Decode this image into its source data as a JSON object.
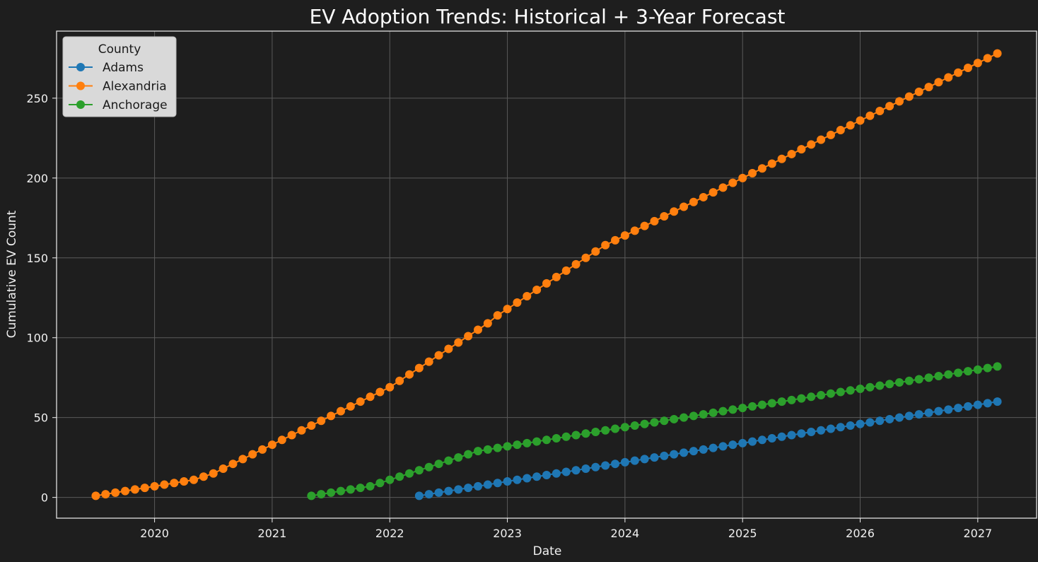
{
  "chart_data": {
    "type": "line",
    "title": "EV Adoption Trends: Historical + 3-Year Forecast",
    "xlabel": "Date",
    "ylabel": "Cumulative EV Count",
    "x_axis_type": "date",
    "xlim": [
      "2019-03",
      "2027-07"
    ],
    "ylim": [
      -13,
      292
    ],
    "x_ticks": [
      "2020",
      "2021",
      "2022",
      "2023",
      "2024",
      "2025",
      "2026",
      "2027"
    ],
    "y_ticks": [
      0,
      50,
      100,
      150,
      200,
      250
    ],
    "grid": true,
    "legend": {
      "title": "County",
      "placement": "top-left"
    },
    "colors": {
      "background": "#1e1e1e",
      "grid": "#5a5a5a",
      "legend_bg": "#d9d9d9"
    },
    "marker": "circle",
    "series": [
      {
        "name": "Adams",
        "color": "#1f77b4",
        "points": [
          [
            "2022-04",
            1
          ],
          [
            "2022-05",
            2
          ],
          [
            "2022-06",
            3
          ],
          [
            "2022-07",
            4
          ],
          [
            "2022-08",
            5
          ],
          [
            "2022-09",
            6
          ],
          [
            "2022-10",
            7
          ],
          [
            "2022-11",
            8
          ],
          [
            "2022-12",
            9
          ],
          [
            "2023-01",
            10
          ],
          [
            "2023-02",
            11
          ],
          [
            "2023-03",
            12
          ],
          [
            "2023-04",
            13
          ],
          [
            "2023-05",
            14
          ],
          [
            "2023-06",
            15
          ],
          [
            "2023-07",
            16
          ],
          [
            "2023-08",
            17
          ],
          [
            "2023-09",
            18
          ],
          [
            "2023-10",
            19
          ],
          [
            "2023-11",
            20
          ],
          [
            "2023-12",
            21
          ],
          [
            "2024-01",
            22
          ],
          [
            "2024-02",
            23
          ],
          [
            "2024-03",
            24
          ],
          [
            "2024-04",
            25
          ],
          [
            "2024-05",
            26
          ],
          [
            "2024-06",
            27
          ],
          [
            "2024-07",
            28
          ],
          [
            "2024-08",
            29
          ],
          [
            "2024-09",
            30
          ],
          [
            "2024-10",
            31
          ],
          [
            "2024-11",
            32
          ],
          [
            "2024-12",
            33
          ],
          [
            "2025-01",
            34
          ],
          [
            "2025-02",
            35
          ],
          [
            "2025-03",
            36
          ],
          [
            "2025-04",
            37
          ],
          [
            "2025-05",
            38
          ],
          [
            "2025-06",
            39
          ],
          [
            "2025-07",
            40
          ],
          [
            "2025-08",
            41
          ],
          [
            "2025-09",
            42
          ],
          [
            "2025-10",
            43
          ],
          [
            "2025-11",
            44
          ],
          [
            "2025-12",
            45
          ],
          [
            "2026-01",
            46
          ],
          [
            "2026-02",
            47
          ],
          [
            "2026-03",
            48
          ],
          [
            "2026-04",
            49
          ],
          [
            "2026-05",
            50
          ],
          [
            "2026-06",
            51
          ],
          [
            "2026-07",
            52
          ],
          [
            "2026-08",
            53
          ],
          [
            "2026-09",
            54
          ],
          [
            "2026-10",
            55
          ],
          [
            "2026-11",
            56
          ],
          [
            "2026-12",
            57
          ],
          [
            "2027-01",
            58
          ],
          [
            "2027-02",
            59
          ],
          [
            "2027-03",
            60
          ]
        ]
      },
      {
        "name": "Alexandria",
        "color": "#ff7f0e",
        "points": [
          [
            "2019-07",
            1
          ],
          [
            "2019-08",
            2
          ],
          [
            "2019-09",
            3
          ],
          [
            "2019-10",
            4
          ],
          [
            "2019-11",
            5
          ],
          [
            "2019-12",
            6
          ],
          [
            "2020-01",
            7
          ],
          [
            "2020-02",
            8
          ],
          [
            "2020-03",
            9
          ],
          [
            "2020-04",
            10
          ],
          [
            "2020-05",
            11
          ],
          [
            "2020-06",
            13
          ],
          [
            "2020-07",
            15
          ],
          [
            "2020-08",
            18
          ],
          [
            "2020-09",
            21
          ],
          [
            "2020-10",
            24
          ],
          [
            "2020-11",
            27
          ],
          [
            "2020-12",
            30
          ],
          [
            "2021-01",
            33
          ],
          [
            "2021-02",
            36
          ],
          [
            "2021-03",
            39
          ],
          [
            "2021-04",
            42
          ],
          [
            "2021-05",
            45
          ],
          [
            "2021-06",
            48
          ],
          [
            "2021-07",
            51
          ],
          [
            "2021-08",
            54
          ],
          [
            "2021-09",
            57
          ],
          [
            "2021-10",
            60
          ],
          [
            "2021-11",
            63
          ],
          [
            "2021-12",
            66
          ],
          [
            "2022-01",
            69
          ],
          [
            "2022-02",
            73
          ],
          [
            "2022-03",
            77
          ],
          [
            "2022-04",
            81
          ],
          [
            "2022-05",
            85
          ],
          [
            "2022-06",
            89
          ],
          [
            "2022-07",
            93
          ],
          [
            "2022-08",
            97
          ],
          [
            "2022-09",
            101
          ],
          [
            "2022-10",
            105
          ],
          [
            "2022-11",
            109
          ],
          [
            "2022-12",
            114
          ],
          [
            "2023-01",
            118
          ],
          [
            "2023-02",
            122
          ],
          [
            "2023-03",
            126
          ],
          [
            "2023-04",
            130
          ],
          [
            "2023-05",
            134
          ],
          [
            "2023-06",
            138
          ],
          [
            "2023-07",
            142
          ],
          [
            "2023-08",
            146
          ],
          [
            "2023-09",
            150
          ],
          [
            "2023-10",
            154
          ],
          [
            "2023-11",
            158
          ],
          [
            "2023-12",
            161
          ],
          [
            "2024-01",
            164
          ],
          [
            "2024-02",
            167
          ],
          [
            "2024-03",
            170
          ],
          [
            "2024-04",
            173
          ],
          [
            "2024-05",
            176
          ],
          [
            "2024-06",
            179
          ],
          [
            "2024-07",
            182
          ],
          [
            "2024-08",
            185
          ],
          [
            "2024-09",
            188
          ],
          [
            "2024-10",
            191
          ],
          [
            "2024-11",
            194
          ],
          [
            "2024-12",
            197
          ],
          [
            "2025-01",
            200
          ],
          [
            "2025-02",
            203
          ],
          [
            "2025-03",
            206
          ],
          [
            "2025-04",
            209
          ],
          [
            "2025-05",
            212
          ],
          [
            "2025-06",
            215
          ],
          [
            "2025-07",
            218
          ],
          [
            "2025-08",
            221
          ],
          [
            "2025-09",
            224
          ],
          [
            "2025-10",
            227
          ],
          [
            "2025-11",
            230
          ],
          [
            "2025-12",
            233
          ],
          [
            "2026-01",
            236
          ],
          [
            "2026-02",
            239
          ],
          [
            "2026-03",
            242
          ],
          [
            "2026-04",
            245
          ],
          [
            "2026-05",
            248
          ],
          [
            "2026-06",
            251
          ],
          [
            "2026-07",
            254
          ],
          [
            "2026-08",
            257
          ],
          [
            "2026-09",
            260
          ],
          [
            "2026-10",
            263
          ],
          [
            "2026-11",
            266
          ],
          [
            "2026-12",
            269
          ],
          [
            "2027-01",
            272
          ],
          [
            "2027-02",
            275
          ],
          [
            "2027-03",
            278
          ]
        ]
      },
      {
        "name": "Anchorage",
        "color": "#2ca02c",
        "points": [
          [
            "2021-05",
            1
          ],
          [
            "2021-06",
            2
          ],
          [
            "2021-07",
            3
          ],
          [
            "2021-08",
            4
          ],
          [
            "2021-09",
            5
          ],
          [
            "2021-10",
            6
          ],
          [
            "2021-11",
            7
          ],
          [
            "2021-12",
            9
          ],
          [
            "2022-01",
            11
          ],
          [
            "2022-02",
            13
          ],
          [
            "2022-03",
            15
          ],
          [
            "2022-04",
            17
          ],
          [
            "2022-05",
            19
          ],
          [
            "2022-06",
            21
          ],
          [
            "2022-07",
            23
          ],
          [
            "2022-08",
            25
          ],
          [
            "2022-09",
            27
          ],
          [
            "2022-10",
            29
          ],
          [
            "2022-11",
            30
          ],
          [
            "2022-12",
            31
          ],
          [
            "2023-01",
            32
          ],
          [
            "2023-02",
            33
          ],
          [
            "2023-03",
            34
          ],
          [
            "2023-04",
            35
          ],
          [
            "2023-05",
            36
          ],
          [
            "2023-06",
            37
          ],
          [
            "2023-07",
            38
          ],
          [
            "2023-08",
            39
          ],
          [
            "2023-09",
            40
          ],
          [
            "2023-10",
            41
          ],
          [
            "2023-11",
            42
          ],
          [
            "2023-12",
            43
          ],
          [
            "2024-01",
            44
          ],
          [
            "2024-02",
            45
          ],
          [
            "2024-03",
            46
          ],
          [
            "2024-04",
            47
          ],
          [
            "2024-05",
            48
          ],
          [
            "2024-06",
            49
          ],
          [
            "2024-07",
            50
          ],
          [
            "2024-08",
            51
          ],
          [
            "2024-09",
            52
          ],
          [
            "2024-10",
            53
          ],
          [
            "2024-11",
            54
          ],
          [
            "2024-12",
            55
          ],
          [
            "2025-01",
            56
          ],
          [
            "2025-02",
            57
          ],
          [
            "2025-03",
            58
          ],
          [
            "2025-04",
            59
          ],
          [
            "2025-05",
            60
          ],
          [
            "2025-06",
            61
          ],
          [
            "2025-07",
            62
          ],
          [
            "2025-08",
            63
          ],
          [
            "2025-09",
            64
          ],
          [
            "2025-10",
            65
          ],
          [
            "2025-11",
            66
          ],
          [
            "2025-12",
            67
          ],
          [
            "2026-01",
            68
          ],
          [
            "2026-02",
            69
          ],
          [
            "2026-03",
            70
          ],
          [
            "2026-04",
            71
          ],
          [
            "2026-05",
            72
          ],
          [
            "2026-06",
            73
          ],
          [
            "2026-07",
            74
          ],
          [
            "2026-08",
            75
          ],
          [
            "2026-09",
            76
          ],
          [
            "2026-10",
            77
          ],
          [
            "2026-11",
            78
          ],
          [
            "2026-12",
            79
          ],
          [
            "2027-01",
            80
          ],
          [
            "2027-02",
            81
          ],
          [
            "2027-03",
            82
          ]
        ]
      }
    ]
  }
}
